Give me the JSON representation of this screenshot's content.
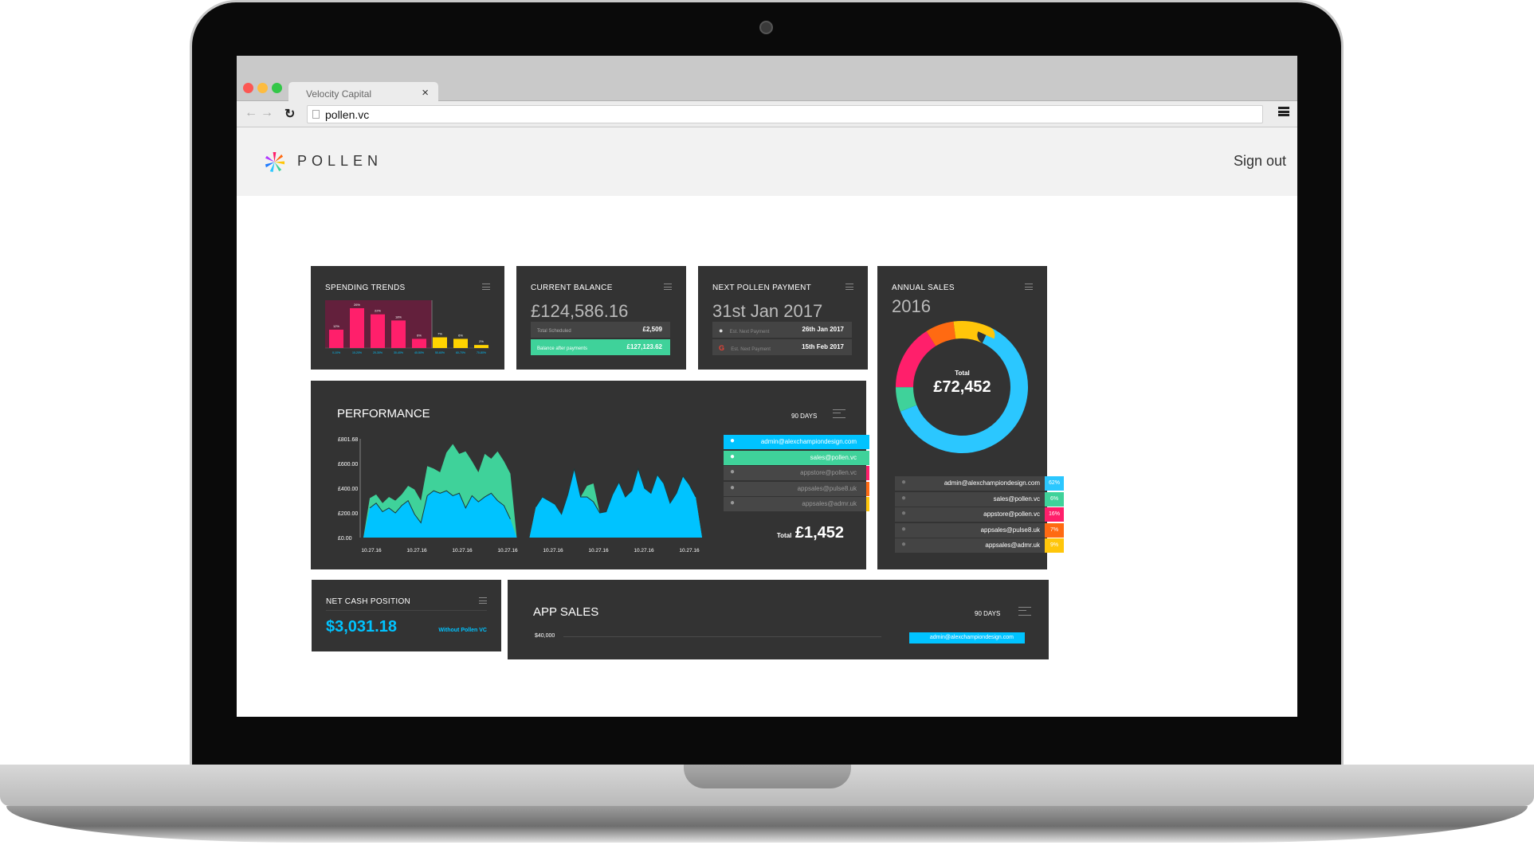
{
  "browser": {
    "tab_title": "Velocity Capital",
    "tab_close": "×",
    "url": "pollen.vc"
  },
  "header": {
    "logo_text": "POLLEN",
    "sign_out": "Sign out"
  },
  "spending_trends": {
    "title": "SPENDING TRENDS",
    "chart_data": {
      "type": "bar",
      "categories": [
        "0-10%",
        "10-20%",
        "20-30%",
        "30-40%",
        "40-50%",
        "50-60%",
        "60-70%",
        "70-80%"
      ],
      "values": [
        12,
        26,
        22,
        18,
        6,
        7,
        6,
        2
      ],
      "value_labels": [
        "12%",
        "26%",
        "22%",
        "18%",
        "6%",
        "7%",
        "6%",
        "2%"
      ],
      "colors": [
        "#ff1f6b",
        "#ff1f6b",
        "#ff1f6b",
        "#ff1f6b",
        "#ff1f6b",
        "#ffd400",
        "#ffd400",
        "#ffd400"
      ]
    }
  },
  "current_balance": {
    "title": "CURRENT BALANCE",
    "value": "£124,586.16",
    "rows": [
      {
        "label": "Total Scheduled",
        "value": "£2,509"
      },
      {
        "label": "Balance after payments",
        "value": "£127,123.62"
      }
    ]
  },
  "next_payment": {
    "title": "NEXT POLLEN PAYMENT",
    "value": "31st Jan 2017",
    "rows": [
      {
        "label": "Est. Next Payment",
        "value": "26th Jan 2017",
        "icon": "apple-icon"
      },
      {
        "label": "Est. Next Payment",
        "value": "15th Feb 2017",
        "icon": "google-icon"
      }
    ]
  },
  "annual_sales": {
    "title": "ANNUAL SALES",
    "year": "2016",
    "total_label": "Total",
    "total_value": "£72,452",
    "chart_data": {
      "type": "pie",
      "labels": [
        "admin@alexchampiondesign.com",
        "sales@pollen.vc",
        "appstore@pollen.vc",
        "appsales@pulse8.uk",
        "appsales@admr.uk"
      ],
      "values": [
        62,
        6,
        16,
        7,
        9
      ],
      "colors": [
        "#2bc7ff",
        "#3fd29a",
        "#ff1f6b",
        "#ff6a12",
        "#ffc60a"
      ]
    },
    "list": [
      {
        "label": "admin@alexchampiondesign.com",
        "pct": "62%",
        "color": "#2bc7ff"
      },
      {
        "label": "sales@pollen.vc",
        "pct": "6%",
        "color": "#3fd29a"
      },
      {
        "label": "appstore@pollen.vc",
        "pct": "16%",
        "color": "#ff1f6b"
      },
      {
        "label": "appsales@pulse8.uk",
        "pct": "7%",
        "color": "#ff6a12"
      },
      {
        "label": "appsales@admr.uk",
        "pct": "9%",
        "color": "#ffc60a"
      }
    ]
  },
  "performance": {
    "title": "PERFORMANCE",
    "range": "90 DAYS",
    "total_label": "Total",
    "total_value": "£1,452",
    "legend": [
      {
        "label": "admin@alexchampiondesign.com",
        "color": "#00c3ff",
        "active": true
      },
      {
        "label": "sales@pollen.vc",
        "color": "#3fd29a",
        "active": true
      },
      {
        "label": "appstore@pollen.vc",
        "color": "#ff1f6b",
        "active": false
      },
      {
        "label": "appsales@pulse8.uk",
        "color": "#ff6a12",
        "active": false
      },
      {
        "label": "appsales@admr.uk",
        "color": "#ffc60a",
        "active": false
      }
    ],
    "chart_data": {
      "type": "area",
      "ylim": [
        0,
        801.68
      ],
      "ytick_labels": [
        "£801.68",
        "£600.00",
        "£400.00",
        "£200.00",
        "£0.00"
      ],
      "ytick_values": [
        801.68,
        600,
        400,
        200,
        0
      ],
      "xtick_labels": [
        "10.27.16",
        "10.27.16",
        "10.27.16",
        "10.27.16",
        "10.27.16",
        "10.27.16",
        "10.27.16",
        "10.27.16"
      ],
      "series": [
        {
          "color": "#3fd29a",
          "segments": [
            [
              [
                0,
                0
              ],
              [
                4,
                320
              ],
              [
                8,
                350
              ],
              [
                12,
                280
              ],
              [
                16,
                330
              ],
              [
                20,
                300
              ],
              [
                24,
                350
              ],
              [
                28,
                420
              ],
              [
                32,
                390
              ],
              [
                36,
                300
              ],
              [
                40,
                580
              ],
              [
                44,
                560
              ],
              [
                48,
                530
              ],
              [
                52,
                690
              ],
              [
                56,
                760
              ],
              [
                60,
                680
              ],
              [
                64,
                700
              ],
              [
                68,
                620
              ],
              [
                72,
                530
              ],
              [
                76,
                680
              ],
              [
                80,
                640
              ],
              [
                84,
                700
              ],
              [
                88,
                620
              ],
              [
                92,
                520
              ],
              [
                96,
                0
              ]
            ],
            [
              [
                104,
                0
              ],
              [
                108,
                250
              ],
              [
                112,
                330
              ],
              [
                116,
                300
              ],
              [
                120,
                270
              ],
              [
                124,
                190
              ],
              [
                128,
                350
              ],
              [
                132,
                560
              ],
              [
                136,
                330
              ],
              [
                140,
                420
              ],
              [
                144,
                440
              ],
              [
                148,
                200
              ],
              [
                152,
                210
              ],
              [
                156,
                350
              ],
              [
                160,
                450
              ],
              [
                164,
                330
              ],
              [
                168,
                380
              ],
              [
                172,
                560
              ],
              [
                176,
                400
              ],
              [
                180,
                360
              ],
              [
                184,
                510
              ],
              [
                188,
                440
              ],
              [
                192,
                280
              ],
              [
                196,
                360
              ],
              [
                200,
                500
              ],
              [
                204,
                430
              ],
              [
                208,
                330
              ],
              [
                212,
                0
              ]
            ]
          ]
        },
        {
          "color": "#00c3ff",
          "segments": [
            [
              [
                0,
                0
              ],
              [
                4,
                240
              ],
              [
                8,
                280
              ],
              [
                12,
                210
              ],
              [
                16,
                240
              ],
              [
                20,
                200
              ],
              [
                24,
                260
              ],
              [
                28,
                300
              ],
              [
                32,
                190
              ],
              [
                36,
                120
              ],
              [
                40,
                340
              ],
              [
                44,
                380
              ],
              [
                48,
                360
              ],
              [
                52,
                380
              ],
              [
                56,
                340
              ],
              [
                60,
                360
              ],
              [
                64,
                240
              ],
              [
                68,
                340
              ],
              [
                72,
                290
              ],
              [
                76,
                330
              ],
              [
                80,
                360
              ],
              [
                84,
                300
              ],
              [
                88,
                260
              ],
              [
                92,
                150
              ],
              [
                96,
                0
              ]
            ],
            [
              [
                104,
                0
              ],
              [
                108,
                250
              ],
              [
                112,
                330
              ],
              [
                116,
                300
              ],
              [
                120,
                270
              ],
              [
                124,
                190
              ],
              [
                128,
                350
              ],
              [
                132,
                560
              ],
              [
                136,
                330
              ],
              [
                140,
                330
              ],
              [
                144,
                290
              ],
              [
                148,
                200
              ],
              [
                152,
                210
              ],
              [
                156,
                350
              ],
              [
                160,
                450
              ],
              [
                164,
                330
              ],
              [
                168,
                380
              ],
              [
                172,
                560
              ],
              [
                176,
                400
              ],
              [
                180,
                360
              ],
              [
                184,
                510
              ],
              [
                188,
                440
              ],
              [
                192,
                280
              ],
              [
                196,
                360
              ],
              [
                200,
                500
              ],
              [
                204,
                430
              ],
              [
                208,
                330
              ],
              [
                212,
                0
              ]
            ]
          ]
        }
      ]
    }
  },
  "net_cash": {
    "title": "NET CASH POSITION",
    "value": "$3,031.18",
    "note": "Without Pollen VC"
  },
  "app_sales": {
    "title": "APP SALES",
    "range": "90 DAYS",
    "ytick": "$40,000",
    "legend_first": "admin@alexchampiondesign.com"
  },
  "colors": {
    "card_bg": "#333333",
    "cyan": "#00c3ff",
    "green": "#3fd29a",
    "pink": "#ff1f6b",
    "orange": "#ff6a12",
    "yellow": "#ffc60a"
  }
}
